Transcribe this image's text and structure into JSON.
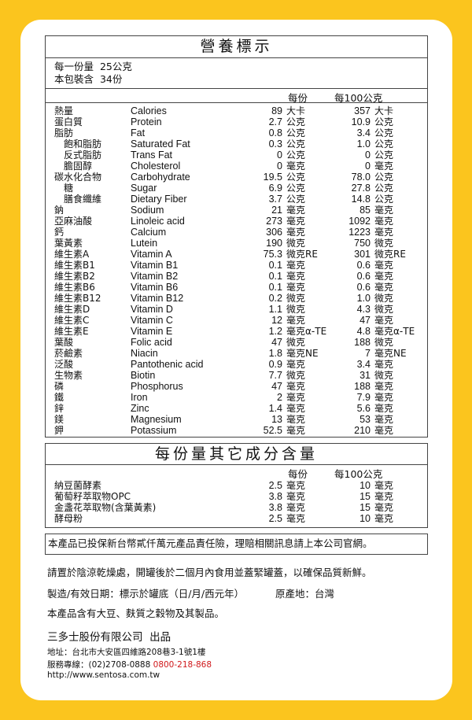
{
  "colors": {
    "background": "#fbc51e",
    "card": "#ffffff",
    "hotline": "#d0181b"
  },
  "nutrition": {
    "title": "營養標示",
    "serving_size": "每一份量  25公克",
    "servings_per_pack": "本包裝含  34份",
    "col_per_serving": "每份",
    "col_per_100g": "每100公克",
    "rows": [
      {
        "cn": "熱量",
        "en": "Calories",
        "v1": "89",
        "u1": "大卡",
        "v2": "357",
        "u2": "大卡"
      },
      {
        "cn": "蛋白質",
        "en": "Protein",
        "v1": "2.7",
        "u1": "公克",
        "v2": "10.9",
        "u2": "公克"
      },
      {
        "cn": "脂肪",
        "en": "Fat",
        "v1": "0.8",
        "u1": "公克",
        "v2": "3.4",
        "u2": "公克"
      },
      {
        "cn": "　飽和脂肪",
        "en": "Saturated Fat",
        "v1": "0.3",
        "u1": "公克",
        "v2": "1.0",
        "u2": "公克"
      },
      {
        "cn": "　反式脂肪",
        "en": "Trans Fat",
        "v1": "0",
        "u1": "公克",
        "v2": "0",
        "u2": "公克"
      },
      {
        "cn": "　膽固醇",
        "en": "Cholesterol",
        "v1": "0",
        "u1": "毫克",
        "v2": "0",
        "u2": "毫克"
      },
      {
        "cn": "碳水化合物",
        "en": "Carbohydrate",
        "v1": "19.5",
        "u1": "公克",
        "v2": "78.0",
        "u2": "公克"
      },
      {
        "cn": "　糖",
        "en": "Sugar",
        "v1": "6.9",
        "u1": "公克",
        "v2": "27.8",
        "u2": "公克"
      },
      {
        "cn": "　膳食纖維",
        "en": "Dietary Fiber",
        "v1": "3.7",
        "u1": "公克",
        "v2": "14.8",
        "u2": "公克"
      },
      {
        "cn": "鈉",
        "en": "Sodium",
        "v1": "21",
        "u1": "毫克",
        "v2": "85",
        "u2": "毫克"
      },
      {
        "cn": "亞麻油酸",
        "en": "Linoleic  acid",
        "v1": "273",
        "u1": "毫克",
        "v2": "1092",
        "u2": "毫克"
      },
      {
        "cn": "鈣",
        "en": "Calcium",
        "v1": "306",
        "u1": "毫克",
        "v2": "1223",
        "u2": "毫克"
      },
      {
        "cn": "葉黃素",
        "en": "Lutein",
        "v1": "190",
        "u1": "微克",
        "v2": "750",
        "u2": "微克"
      },
      {
        "cn": "維生素A",
        "en": "Vitamin A",
        "v1": "75.3",
        "u1": "微克RE",
        "v2": "301",
        "u2": "微克RE"
      },
      {
        "cn": "維生素B1",
        "en": "Vitamin B1",
        "v1": "0.1",
        "u1": "毫克",
        "v2": "0.6",
        "u2": "毫克"
      },
      {
        "cn": "維生素B2",
        "en": "Vitamin B2",
        "v1": "0.1",
        "u1": "毫克",
        "v2": "0.6",
        "u2": "毫克"
      },
      {
        "cn": "維生素B6",
        "en": "Vitamin B6",
        "v1": "0.1",
        "u1": "毫克",
        "v2": "0.6",
        "u2": "毫克"
      },
      {
        "cn": "維生素B12",
        "en": "Vitamin B12",
        "v1": "0.2",
        "u1": "微克",
        "v2": "1.0",
        "u2": "微克"
      },
      {
        "cn": "維生素D",
        "en": "Vitamin D",
        "v1": "1.1",
        "u1": "微克",
        "v2": "4.3",
        "u2": "微克"
      },
      {
        "cn": "維生素C",
        "en": "Vitamin C",
        "v1": "12",
        "u1": "毫克",
        "v2": "47",
        "u2": "毫克"
      },
      {
        "cn": "維生素E",
        "en": "Vitamin E",
        "v1": "1.2",
        "u1": "毫克α-TE",
        "v2": "4.8",
        "u2": "毫克α-TE"
      },
      {
        "cn": "葉酸",
        "en": "Folic acid",
        "v1": "47",
        "u1": "微克",
        "v2": "188",
        "u2": "微克"
      },
      {
        "cn": "菸鹼素",
        "en": "Niacin",
        "v1": "1.8",
        "u1": "毫克NE",
        "v2": "7",
        "u2": "毫克NE"
      },
      {
        "cn": "泛酸",
        "en": "Pantothenic acid",
        "v1": "0.9",
        "u1": "毫克",
        "v2": "3.4",
        "u2": "毫克"
      },
      {
        "cn": "生物素",
        "en": "Biotin",
        "v1": "7.7",
        "u1": "微克",
        "v2": "31",
        "u2": "微克"
      },
      {
        "cn": "磷",
        "en": "Phosphorus",
        "v1": "47",
        "u1": "毫克",
        "v2": "188",
        "u2": "毫克"
      },
      {
        "cn": "鐵",
        "en": "Iron",
        "v1": "2",
        "u1": "毫克",
        "v2": "7.9",
        "u2": "毫克"
      },
      {
        "cn": "鋅",
        "en": "Zinc",
        "v1": "1.4",
        "u1": "毫克",
        "v2": "5.6",
        "u2": "毫克"
      },
      {
        "cn": "鎂",
        "en": "Magnesium",
        "v1": "13",
        "u1": "毫克",
        "v2": "53",
        "u2": "毫克"
      },
      {
        "cn": "鉀",
        "en": "Potassium",
        "v1": "52.5",
        "u1": "毫克",
        "v2": "210",
        "u2": "毫克"
      }
    ]
  },
  "other": {
    "title": "每份量其它成分含量",
    "col_per_serving": "每份",
    "col_per_100g": "每100公克",
    "rows": [
      {
        "cn": "納豆菌酵素",
        "v1": "2.5",
        "u1": "毫克",
        "v2": "10",
        "u2": "毫克"
      },
      {
        "cn": "葡萄籽萃取物OPC",
        "v1": "3.8",
        "u1": "毫克",
        "v2": "15",
        "u2": "毫克"
      },
      {
        "cn": "金盞花萃取物(含葉黃素)",
        "v1": "3.8",
        "u1": "毫克",
        "v2": "15",
        "u2": "毫克"
      },
      {
        "cn": "酵母粉",
        "v1": "2.5",
        "u1": "毫克",
        "v2": "10",
        "u2": "毫克"
      }
    ]
  },
  "insurance": "本產品已投保新台幣貳仟萬元產品責任險，理賠相關訊息請上本公司官網。",
  "storage": "請置於陰涼乾燥處，開罐後於二個月內食用並蓋緊罐蓋，以確保品質新鮮。",
  "dates": "製造/有效日期：標示於罐底（日/月/西元年）",
  "origin": "原產地：台灣",
  "allergen": "本產品含有大豆、麩質之穀物及其製品。",
  "company": "三多士股份有限公司  出品",
  "address": "地址：台北市大安區四維路208巷3-1號1樓",
  "phone_label": "服務專線：(02)2708-0888",
  "hotline": "0800-218-868",
  "website": "http://www.sentosa.com.tw"
}
